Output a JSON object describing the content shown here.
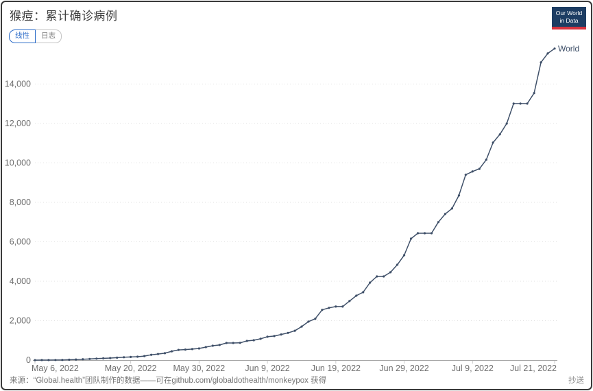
{
  "header": {
    "logo": {
      "line1": "Our World",
      "line2": "in Data"
    }
  },
  "controls": {
    "tabs": [
      {
        "id": "linear",
        "label": "线性",
        "active": true
      },
      {
        "id": "log",
        "label": "日志",
        "active": false
      }
    ]
  },
  "chart_data": {
    "type": "line",
    "title": "猴痘：累计确诊病例",
    "x_axis": {
      "start_date": "May 6, 2022",
      "end_date": "Jul 21, 2022",
      "cadence": "daily",
      "tick_labels": [
        "May 6, 2022",
        "May 20, 2022",
        "May 30, 2022",
        "Jun 9, 2022",
        "Jun 19, 2022",
        "Jun 29, 2022",
        "Jul 9, 2022",
        "Jul 21, 2022"
      ],
      "tick_day_index": [
        0,
        14,
        24,
        34,
        44,
        54,
        64,
        76
      ]
    },
    "y_axis": {
      "ticks": [
        0,
        2000,
        4000,
        6000,
        8000,
        10000,
        12000,
        14000
      ],
      "tick_labels": [
        "0",
        "2,000",
        "4,000",
        "6,000",
        "8,000",
        "10,000",
        "12,000",
        "14,000"
      ],
      "range": [
        0,
        16000
      ],
      "gridlines": true
    },
    "legend": "inline-end-label",
    "series": [
      {
        "name": "World",
        "color": "#3e4f68",
        "values": [
          1,
          2,
          4,
          8,
          12,
          20,
          30,
          45,
          60,
          75,
          90,
          105,
          125,
          145,
          160,
          175,
          205,
          270,
          310,
          350,
          450,
          520,
          535,
          560,
          590,
          660,
          730,
          770,
          870,
          870,
          875,
          975,
          1010,
          1080,
          1185,
          1220,
          1300,
          1380,
          1490,
          1700,
          1950,
          2100,
          2550,
          2650,
          2715,
          2715,
          2995,
          3270,
          3445,
          3930,
          4245,
          4245,
          4455,
          4840,
          5320,
          6160,
          6435,
          6435,
          6435,
          7000,
          7410,
          7690,
          8350,
          9400,
          9570,
          9700,
          10160,
          11030,
          11450,
          12000,
          13010,
          13010,
          13010,
          13540,
          15100,
          15550,
          15800
        ]
      }
    ]
  },
  "footer": {
    "source": "来源：“Global.health”团队制作的数据——可在github.com/globaldothealth/monkeypox 获得",
    "license": "抄送"
  },
  "colors": {
    "accent_blue": "#2b6bc8",
    "line": "#3e4f68",
    "logo_bg": "#1d3d63",
    "logo_bar": "#d7333f"
  }
}
